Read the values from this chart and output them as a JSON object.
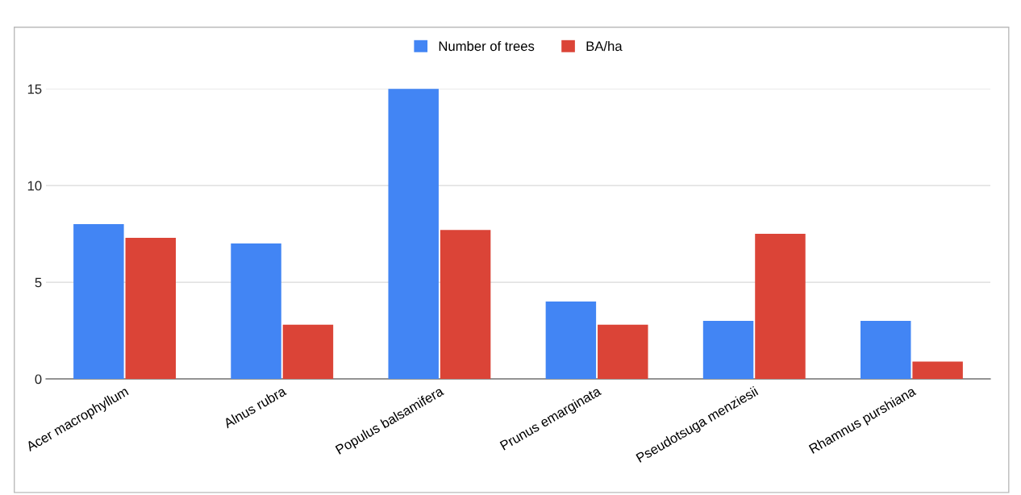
{
  "chart_data": {
    "type": "bar",
    "categories": [
      "Acer macrophyllum",
      "Alnus rubra",
      "Populus balsamifera",
      "Prunus emarginata",
      "Pseudotsuga menziesii",
      "Rhamnus purshiana"
    ],
    "series": [
      {
        "name": "Number of trees",
        "color": "#4285f4",
        "values": [
          8,
          7,
          15,
          4,
          3,
          3
        ]
      },
      {
        "name": "BA/ha",
        "color": "#db4437",
        "values": [
          7.3,
          2.8,
          7.7,
          2.8,
          7.5,
          0.9
        ]
      }
    ],
    "ylim": [
      0,
      15
    ],
    "yticks": [
      0,
      5,
      10,
      15
    ],
    "grid": "y",
    "legend": "top"
  }
}
